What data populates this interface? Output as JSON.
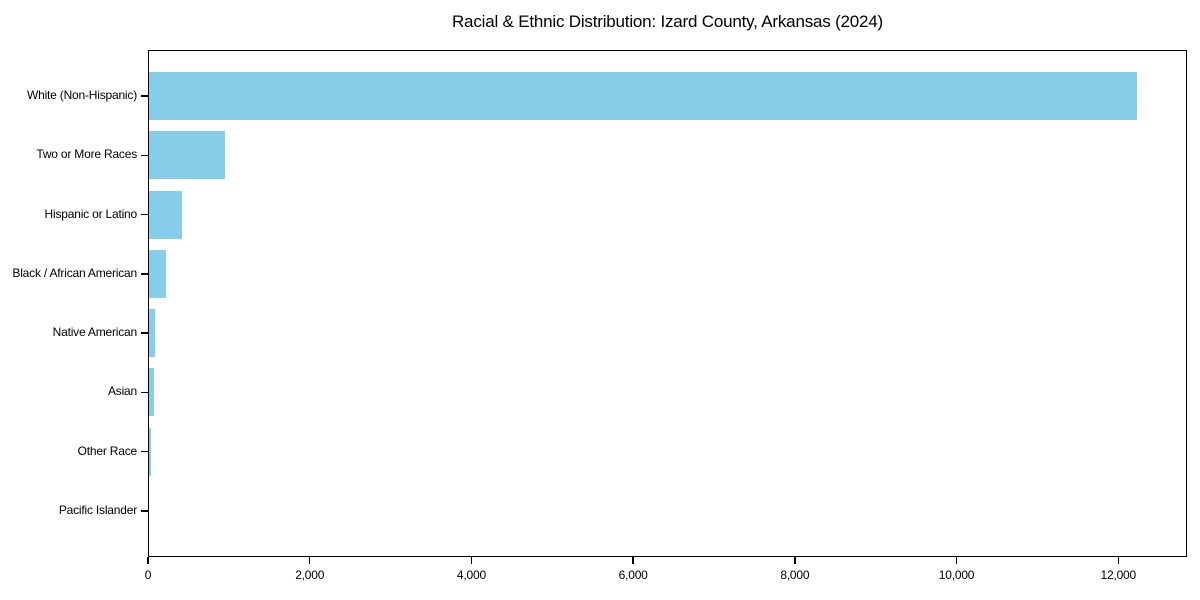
{
  "chart_data": {
    "type": "bar",
    "orientation": "horizontal",
    "title": "Racial & Ethnic Distribution: Izard County, Arkansas (2024)",
    "categories": [
      "White (Non-Hispanic)",
      "Two or More Races",
      "Hispanic or Latino",
      "Black / African American",
      "Native American",
      "Asian",
      "Other Race",
      "Pacific Islander"
    ],
    "values": [
      12235,
      950,
      425,
      225,
      90,
      75,
      35,
      0
    ],
    "xlabel": "",
    "ylabel": "",
    "xlim": [
      0,
      12850
    ],
    "xticks": [
      0,
      2000,
      4000,
      6000,
      8000,
      10000,
      12000
    ],
    "xtick_labels": [
      "0",
      "2,000",
      "4,000",
      "6,000",
      "8,000",
      "10,000",
      "12,000"
    ],
    "bar_color": "#87CEEB",
    "axis_color": "#000000",
    "grid": false,
    "legend_position": "none",
    "sort_order": "descending"
  }
}
